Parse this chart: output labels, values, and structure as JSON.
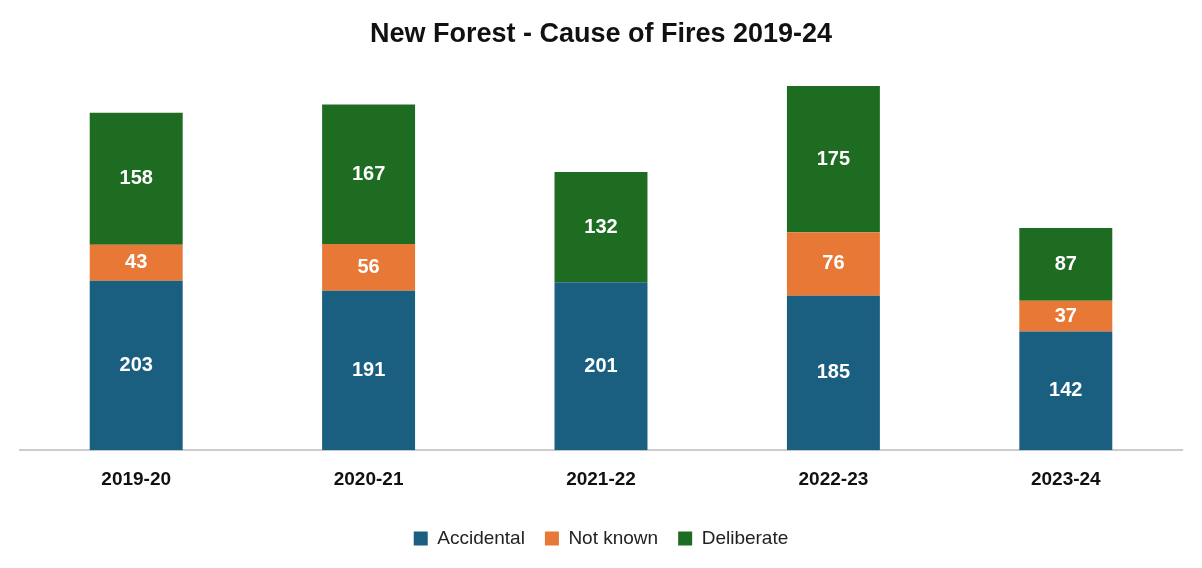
{
  "chart_data": {
    "type": "bar",
    "title": "New Forest - Cause of Fires 2019-24",
    "categories": [
      "2019-20",
      "2020-21",
      "2021-22",
      "2022-23",
      "2023-24"
    ],
    "stacked": true,
    "data_labels": true,
    "legend": "bottom",
    "series": [
      {
        "name": "Accidental",
        "color": "#1a5e80",
        "values": [
          203,
          191,
          201,
          185,
          142
        ]
      },
      {
        "name": "Not known",
        "color": "#e87835",
        "values": [
          43,
          56,
          null,
          76,
          37
        ]
      },
      {
        "name": "Deliberate",
        "color": "#1e6b22",
        "values": [
          158,
          167,
          132,
          175,
          87
        ]
      }
    ]
  }
}
